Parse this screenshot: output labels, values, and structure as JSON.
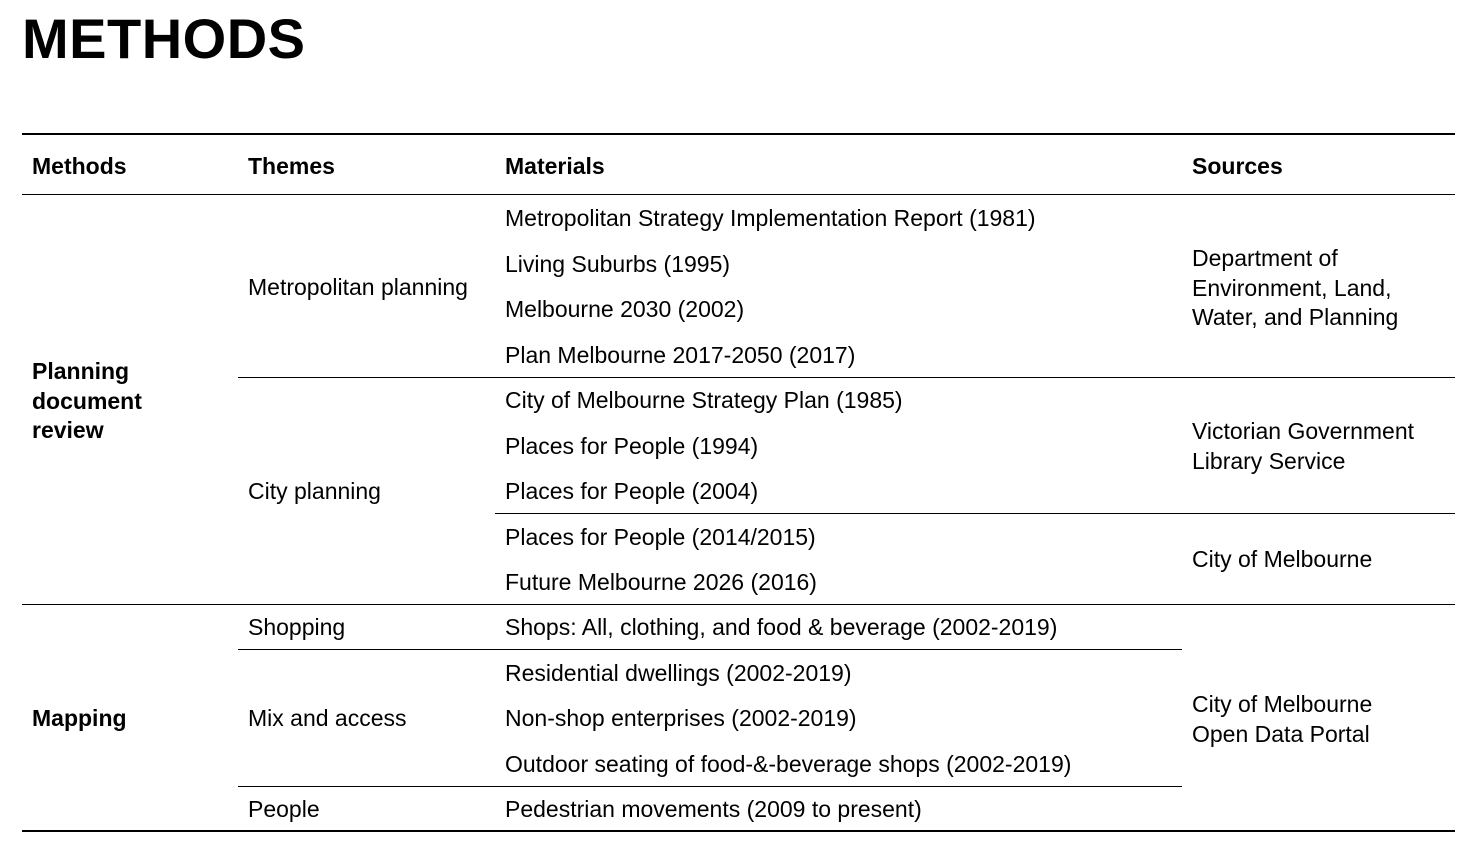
{
  "title": "METHODS",
  "headers": {
    "methods": "Methods",
    "themes": "Themes",
    "materials": "Materials",
    "sources": "Sources"
  },
  "methods": {
    "planning": [
      "Planning",
      "document",
      "review"
    ],
    "mapping": "Mapping"
  },
  "themes": {
    "metropolitan": "Metropolitan planning",
    "city": "City planning",
    "shopping": "Shopping",
    "mix": "Mix and access",
    "people": "People"
  },
  "materials": [
    "Metropolitan Strategy Implementation Report (1981)",
    "Living Suburbs (1995)",
    "Melbourne 2030 (2002)",
    "Plan Melbourne 2017-2050 (2017)",
    "City of Melbourne Strategy Plan (1985)",
    "Places for People (1994)",
    "Places for People (2004)",
    "Places for People (2014/2015)",
    "Future Melbourne 2026 (2016)",
    "Shops: All, clothing, and food & beverage (2002-2019)",
    "Residential dwellings (2002-2019)",
    "Non-shop enterprises (2002-2019)",
    "Outdoor seating of food-&-beverage shops (2002-2019)",
    "Pedestrian movements (2009 to present)"
  ],
  "sources": {
    "delwp": [
      "Department of",
      "Environment, Land,",
      "Water, and Planning"
    ],
    "vgls": [
      "Victorian Government",
      "Library Service"
    ],
    "com": "City of Melbourne",
    "comodp": [
      "City of Melbourne",
      "Open Data Portal"
    ]
  }
}
